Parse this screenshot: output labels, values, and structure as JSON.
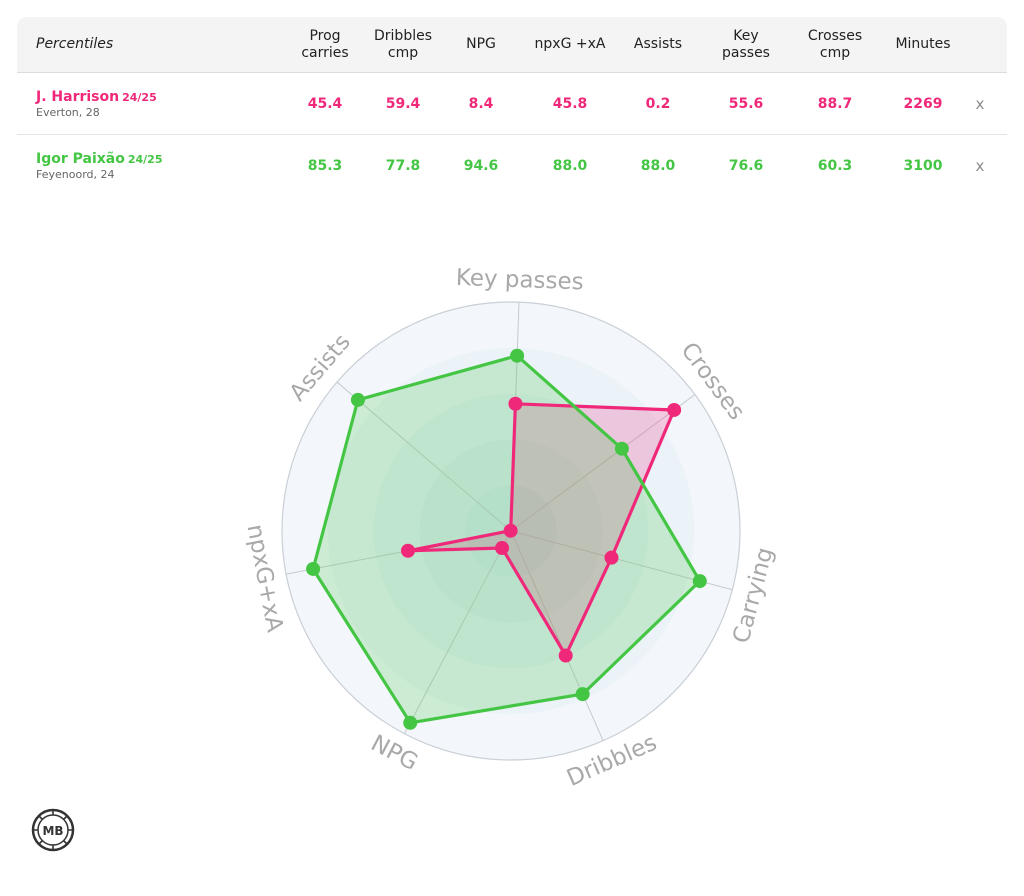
{
  "table": {
    "header_first": "Percentiles",
    "columns": [
      "Prog\ncarries",
      "Dribbles\ncmp",
      "NPG",
      "npxG +xA",
      "Assists",
      "Key\npasses",
      "Crosses\ncmp",
      "Minutes"
    ],
    "remove_label": "x",
    "players": [
      {
        "name": "J. Harrison",
        "season": "24/25",
        "info": "Everton, 28",
        "color": "#f0287a",
        "values": [
          "45.4",
          "59.4",
          "8.4",
          "45.8",
          "0.2",
          "55.6",
          "88.7",
          "2269"
        ]
      },
      {
        "name": "Igor Paixão",
        "season": "24/25",
        "info": "Feyenoord, 24",
        "color": "#44c644",
        "values": [
          "85.3",
          "77.8",
          "94.6",
          "88.0",
          "88.0",
          "76.6",
          "60.3",
          "3100"
        ]
      }
    ]
  },
  "chart_data": {
    "type": "radar",
    "axes": [
      "Key passes",
      "Crosses",
      "Carrying",
      "Dribbles",
      "NPG",
      "npxG+xA",
      "Assists"
    ],
    "range": [
      0,
      100
    ],
    "series": [
      {
        "name": "J. Harrison",
        "color": "#f0287a",
        "values": [
          55.6,
          88.7,
          45.4,
          59.4,
          8.4,
          45.8,
          0.2
        ]
      },
      {
        "name": "Igor Paixão",
        "color": "#44c644",
        "values": [
          76.6,
          60.3,
          85.3,
          77.8,
          94.6,
          88.0,
          88.0
        ]
      }
    ]
  },
  "logo": {
    "text": "MB"
  }
}
